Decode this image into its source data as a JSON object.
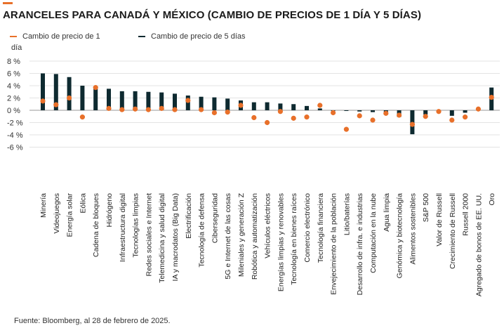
{
  "header": {
    "title": "ARANCELES PARA CANADÁ Y MÉXICO (CAMBIO DE PRECIOS DE 1 DÍA Y 5 DÍAS)"
  },
  "legend": {
    "one_day_label": "Cambio de precio de 1",
    "one_day_label_cont": "día",
    "five_day_label": "Cambio de precio de 5 días"
  },
  "colors": {
    "one_day": "#e8702a",
    "five_day": "#0e2a30",
    "accent": "#e8702a"
  },
  "footer": {
    "source": "Fuente: Bloomberg, al 28 de febrero de 2025."
  },
  "chart_data": {
    "type": "bar",
    "title": "ARANCELES PARA CANADÁ Y MÉXICO (CAMBIO DE PRECIOS DE 1 DÍA Y 5 DÍAS)",
    "xlabel": "",
    "ylabel": "",
    "ylim": [
      -6,
      8
    ],
    "yticks": [
      8,
      6,
      4,
      2,
      0,
      -2,
      -4,
      -6
    ],
    "ytick_labels": [
      "8 %",
      "6 %",
      "4 %",
      "2 %",
      "0 %",
      "-2 %",
      "-4 %",
      "-6 %"
    ],
    "grid": true,
    "legend_position": "top-left",
    "categories": [
      "Minería",
      "Videojuegos",
      "Energía solar",
      "Eólica",
      "Cadena de bloques",
      "Hidrógeno",
      "Infraestructura digital",
      "Tecnologías limpias",
      "Redes sociales e Internet",
      "Telemedicina y salud digital",
      "IA y macrodatos (Big Data)",
      "Electrificación",
      "Tecnología de defensa",
      "Ciberseguridad",
      "5G e Internet de las cosas",
      "Mileniales y generación Z",
      "Robótica y automatización",
      "Vehículos eléctricos",
      "Energías limpias y renovables",
      "Tecnología en bienes raíces",
      "Comercio electrónico",
      "Tecnología financiera",
      "Envejecimiento de la población",
      "Litio/baterías",
      "Desarrollo de infra. e industrias",
      "Computación en la nube",
      "Agua limpia",
      "Genómica y biotecnología",
      "Alimentos sostenibles",
      "S&P 500",
      "Valor de Russell",
      "Crecimiento de Russell",
      "Russell 2000",
      "Agregado de bonos de EE. UU.",
      "Oro"
    ],
    "series": [
      {
        "name": "Cambio de precio de 5 días",
        "kind": "bar",
        "values": [
          6.0,
          5.9,
          5.4,
          4.0,
          3.8,
          3.5,
          3.1,
          3.1,
          3.0,
          2.9,
          2.7,
          2.4,
          2.2,
          2.1,
          1.9,
          1.6,
          1.3,
          1.3,
          1.1,
          1.0,
          0.7,
          0.3,
          -0.1,
          -0.1,
          -0.2,
          -0.3,
          -0.4,
          -1.1,
          -3.9,
          -0.7,
          -0.2,
          -0.9,
          -0.4,
          0.3,
          3.7
        ]
      },
      {
        "name": "Cambio de precio de 1 día",
        "kind": "marker",
        "values": [
          1.5,
          0.9,
          2.0,
          -1.1,
          3.7,
          0.3,
          0.1,
          0.2,
          0.1,
          0.3,
          0.1,
          1.6,
          0.1,
          -0.4,
          -0.3,
          0.8,
          -1.2,
          -2.0,
          -0.2,
          -1.3,
          -1.1,
          0.8,
          -0.4,
          -3.1,
          -0.9,
          -1.6,
          -0.5,
          -0.8,
          -2.3,
          -1.0,
          -0.2,
          -1.6,
          -1.1,
          0.2,
          2.1
        ]
      }
    ]
  }
}
